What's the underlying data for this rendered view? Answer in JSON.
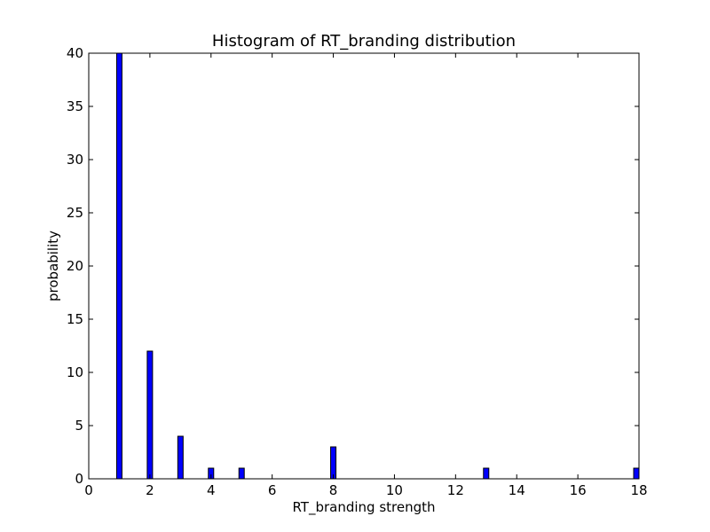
{
  "chart_data": {
    "type": "bar",
    "title": "Histogram of RT_branding  distribution",
    "xlabel": "RT_branding  strength",
    "ylabel": "probability",
    "xlim": [
      0,
      18
    ],
    "ylim": [
      0,
      40
    ],
    "xticks": [
      "0",
      "2",
      "4",
      "6",
      "8",
      "10",
      "12",
      "14",
      "16",
      "18"
    ],
    "yticks": [
      "0",
      "5",
      "10",
      "15",
      "20",
      "25",
      "30",
      "35",
      "40"
    ],
    "x": [
      1,
      2,
      3,
      4,
      5,
      8,
      13,
      18
    ],
    "values": [
      40,
      12,
      4,
      1,
      1,
      3,
      1,
      1
    ],
    "grid": false,
    "bar_color": "#0000ff"
  }
}
